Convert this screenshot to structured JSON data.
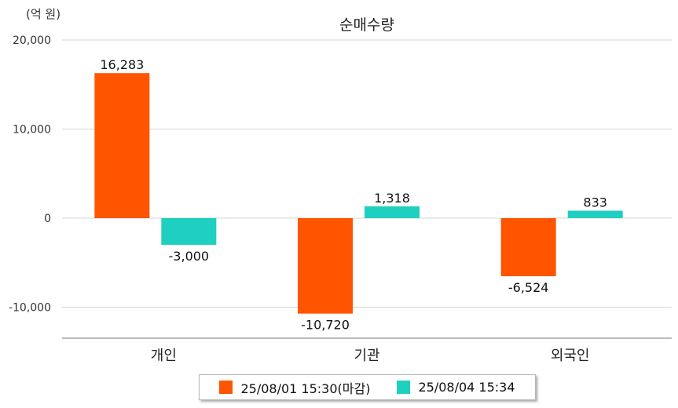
{
  "chart_data": {
    "type": "bar",
    "title": "순매수량",
    "unit_label": "(억 원)",
    "categories": [
      "개인",
      "기관",
      "외국인"
    ],
    "series": [
      {
        "name": "25/08/01 15:30(마감)",
        "color": "#ff5500",
        "values": [
          16283,
          -10720,
          -6524
        ],
        "labels": [
          "16,283",
          "-10,720",
          "-6,524"
        ]
      },
      {
        "name": "25/08/04 15:34",
        "color": "#1fcfbf",
        "values": [
          -3000,
          1318,
          833
        ],
        "labels": [
          "-3,000",
          "1,318",
          "833"
        ]
      }
    ],
    "y_ticks": [
      20000,
      10000,
      0,
      -10000
    ],
    "y_tick_labels": [
      "20,000",
      "10,000",
      "0",
      "-10,000"
    ],
    "ylim": [
      -13500,
      20000
    ],
    "grid": true,
    "legend_position": "bottom"
  }
}
